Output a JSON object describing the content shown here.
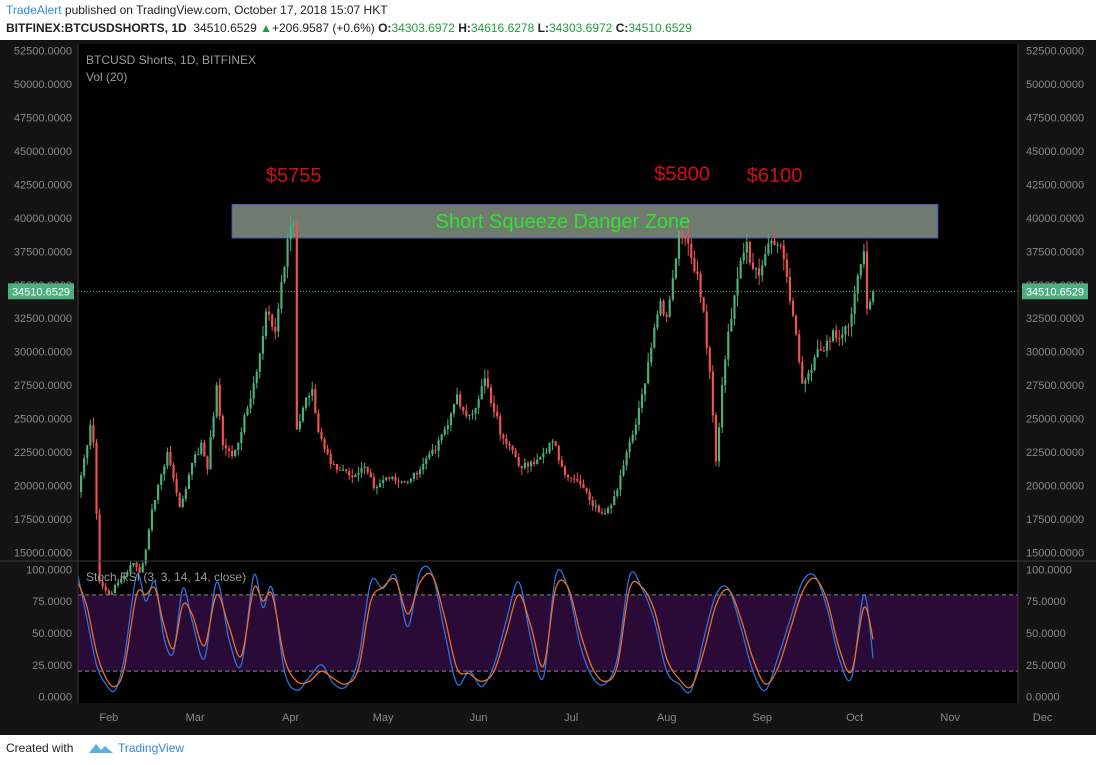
{
  "header": {
    "author": "TradeAlert",
    "published_text": " published on TradingView.com, October 17, 2018 15:07 HKT",
    "symbol": "BITFINEX:BTCUSDSHORTS, 1D",
    "last": "34510.6529",
    "change": "+206.9587 (+0.6%)",
    "o_label": "O:",
    "o_value": "34303.6972",
    "h_label": "H:",
    "h_value": "34616.6278",
    "l_label": "L:",
    "l_value": "34303.6972",
    "c_label": "C:",
    "c_value": "34510.6529"
  },
  "footer": {
    "created_with": "Created with",
    "brand": "TradingView"
  },
  "colors": {
    "background": "#000000",
    "up_candle": "#4caf7d",
    "down_candle": "#ef5350",
    "zone_fill": "#8c9a8c",
    "zone_text": "#33e033",
    "price_note": "#d01010",
    "stoch_k": "#2f6ee0",
    "stoch_d": "#e8702a",
    "stoch_band": "#2a0a36",
    "price_badge": "#4caf7d"
  },
  "chart_data": [
    {
      "type": "candlestick",
      "title": "BTCUSD Shorts, 1D, BITFINEX",
      "subtitle": "Vol (20)",
      "ylim": [
        14500,
        53000
      ],
      "yticks": [
        15000,
        17500,
        20000,
        22500,
        25000,
        27500,
        30000,
        32500,
        35000,
        37500,
        40000,
        42500,
        45000,
        47500,
        50000,
        52500
      ],
      "ytick_labels": [
        "15000.0000",
        "17500.0000",
        "20000.0000",
        "22500.0000",
        "25000.0000",
        "27500.0000",
        "30000.0000",
        "32500.0000",
        "35000.0000",
        "37500.0000",
        "40000.0000",
        "42500.0000",
        "45000.0000",
        "47500.0000",
        "50000.0000",
        "52500.0000"
      ],
      "x_months": [
        "Feb",
        "Mar",
        "Apr",
        "May",
        "Jun",
        "Jul",
        "Aug",
        "Sep",
        "Oct",
        "Nov",
        "Dec"
      ],
      "x_range_days": [
        0,
        305
      ],
      "last_price": 34510.6529,
      "last_price_label": "34510.6529",
      "closes_keypoints": [
        [
          0,
          19500
        ],
        [
          4,
          24500
        ],
        [
          5,
          23200
        ],
        [
          7,
          12800
        ],
        [
          10,
          11800
        ],
        [
          14,
          13000
        ],
        [
          18,
          14200
        ],
        [
          20,
          13500
        ],
        [
          22,
          15200
        ],
        [
          24,
          18200
        ],
        [
          27,
          20800
        ],
        [
          29,
          22500
        ],
        [
          31,
          20500
        ],
        [
          33,
          18400
        ],
        [
          36,
          20800
        ],
        [
          40,
          23200
        ],
        [
          42,
          21200
        ],
        [
          45,
          27500
        ],
        [
          47,
          23000
        ],
        [
          50,
          22200
        ],
        [
          53,
          24000
        ],
        [
          58,
          28500
        ],
        [
          61,
          33000
        ],
        [
          64,
          31500
        ],
        [
          66,
          35200
        ],
        [
          68,
          38400
        ],
        [
          70,
          39500
        ],
        [
          71,
          24200
        ],
        [
          73,
          25800
        ],
        [
          76,
          27200
        ],
        [
          78,
          24000
        ],
        [
          82,
          21600
        ],
        [
          86,
          21200
        ],
        [
          90,
          20800
        ],
        [
          93,
          21400
        ],
        [
          96,
          19800
        ],
        [
          100,
          20600
        ],
        [
          104,
          20300
        ],
        [
          108,
          20500
        ],
        [
          112,
          21600
        ],
        [
          116,
          22600
        ],
        [
          120,
          24500
        ],
        [
          123,
          26800
        ],
        [
          126,
          25200
        ],
        [
          129,
          25800
        ],
        [
          132,
          28000
        ],
        [
          135,
          25500
        ],
        [
          138,
          23500
        ],
        [
          141,
          22600
        ],
        [
          144,
          21300
        ],
        [
          148,
          21600
        ],
        [
          151,
          22400
        ],
        [
          154,
          23300
        ],
        [
          157,
          21400
        ],
        [
          160,
          20500
        ],
        [
          163,
          20100
        ],
        [
          166,
          18900
        ],
        [
          169,
          18000
        ],
        [
          172,
          18300
        ],
        [
          174,
          19200
        ],
        [
          177,
          21500
        ],
        [
          180,
          23800
        ],
        [
          183,
          26800
        ],
        [
          185,
          29200
        ],
        [
          187,
          31800
        ],
        [
          189,
          33800
        ],
        [
          191,
          32600
        ],
        [
          193,
          35500
        ],
        [
          195,
          39000
        ],
        [
          197,
          38500
        ],
        [
          199,
          37000
        ],
        [
          201,
          35800
        ],
        [
          203,
          33000
        ],
        [
          205,
          28500
        ],
        [
          207,
          21800
        ],
        [
          209,
          27500
        ],
        [
          211,
          31500
        ],
        [
          213,
          34200
        ],
        [
          215,
          36800
        ],
        [
          217,
          38200
        ],
        [
          219,
          36200
        ],
        [
          221,
          35700
        ],
        [
          223,
          37300
        ],
        [
          225,
          38300
        ],
        [
          227,
          38000
        ],
        [
          229,
          36900
        ],
        [
          231,
          33800
        ],
        [
          233,
          31300
        ],
        [
          235,
          27600
        ],
        [
          237,
          28400
        ],
        [
          239,
          29600
        ],
        [
          241,
          30100
        ],
        [
          243,
          30800
        ],
        [
          245,
          31600
        ],
        [
          247,
          31000
        ],
        [
          249,
          31900
        ],
        [
          251,
          32800
        ],
        [
          253,
          35700
        ],
        [
          255,
          37500
        ],
        [
          256,
          33200
        ],
        [
          258,
          34510.6529
        ]
      ],
      "annotations": [
        {
          "text": "$5755",
          "x_day": 70,
          "y": 42700
        },
        {
          "text": "$5800",
          "x_day": 196,
          "y": 42800
        },
        {
          "text": "$6100",
          "x_day": 226,
          "y": 42700
        }
      ],
      "zone": {
        "label": "Short Squeeze Danger Zone",
        "x0_day": 50,
        "x1_day": 279,
        "y0": 38500,
        "y1": 41000
      }
    },
    {
      "type": "line",
      "title": "Stoch RSI (3, 3, 14, 14, close)",
      "ylim": [
        -5,
        105
      ],
      "yticks": [
        0,
        25,
        50,
        75,
        100
      ],
      "ytick_labels": [
        "0.0000",
        "25.0000",
        "50.0000",
        "75.0000",
        "100.0000"
      ],
      "band": [
        20,
        80
      ],
      "series": [
        {
          "name": "K",
          "x": [
            0,
            3,
            6,
            9,
            12,
            15,
            19,
            22,
            25,
            28,
            31,
            34,
            37,
            41,
            45,
            49,
            53,
            57,
            60,
            63,
            67,
            71,
            75,
            79,
            83,
            87,
            91,
            95,
            99,
            103,
            107,
            111,
            115,
            119,
            123,
            127,
            131,
            135,
            139,
            143,
            147,
            151,
            155,
            159,
            163,
            167,
            171,
            175,
            179,
            183,
            187,
            191,
            195,
            199,
            203,
            207,
            211,
            215,
            219,
            223,
            227,
            231,
            235,
            239,
            243,
            247,
            251,
            255,
            258
          ],
          "y": [
            95,
            60,
            25,
            10,
            5,
            30,
            95,
            75,
            90,
            45,
            35,
            85,
            60,
            30,
            90,
            45,
            25,
            95,
            70,
            85,
            20,
            5,
            15,
            25,
            10,
            8,
            30,
            90,
            85,
            95,
            55,
            98,
            96,
            50,
            10,
            20,
            8,
            25,
            60,
            90,
            45,
            15,
            95,
            85,
            40,
            15,
            10,
            30,
            95,
            85,
            60,
            20,
            10,
            5,
            45,
            80,
            85,
            55,
            20,
            5,
            30,
            60,
            90,
            95,
            70,
            30,
            15,
            80,
            30
          ]
        },
        {
          "name": "D",
          "x": [
            0,
            3,
            6,
            9,
            12,
            15,
            19,
            22,
            25,
            28,
            31,
            34,
            37,
            41,
            45,
            49,
            53,
            57,
            60,
            63,
            67,
            71,
            75,
            79,
            83,
            87,
            91,
            95,
            99,
            103,
            107,
            111,
            115,
            119,
            123,
            127,
            131,
            135,
            139,
            143,
            147,
            151,
            155,
            159,
            163,
            167,
            171,
            175,
            179,
            183,
            187,
            191,
            195,
            199,
            203,
            207,
            211,
            215,
            219,
            223,
            227,
            231,
            235,
            239,
            243,
            247,
            251,
            255,
            258
          ],
          "y": [
            90,
            70,
            35,
            15,
            8,
            22,
            80,
            80,
            85,
            55,
            38,
            72,
            65,
            40,
            80,
            55,
            32,
            85,
            75,
            80,
            30,
            12,
            12,
            20,
            14,
            10,
            22,
            75,
            86,
            92,
            65,
            90,
            95,
            62,
            22,
            18,
            12,
            20,
            50,
            80,
            55,
            24,
            85,
            86,
            50,
            22,
            12,
            24,
            85,
            86,
            68,
            30,
            14,
            8,
            35,
            72,
            84,
            62,
            30,
            10,
            22,
            52,
            82,
            93,
            76,
            38,
            20,
            70,
            45
          ]
        }
      ]
    }
  ]
}
